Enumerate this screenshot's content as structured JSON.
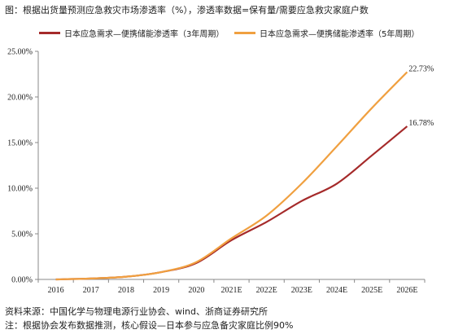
{
  "title": "图：根据出货量预测应急救灾市场渗透率（%），渗透率数据=保有量/需要应急救灾家庭户数",
  "source": "资料来源：中国化学与物理电源行业协会、wind、浙商证券研究所",
  "note": "注：根据协会发布数据推测，核心假设—日本参与应急备灾家庭比例90%",
  "chart_data": {
    "type": "line",
    "x": [
      "2016",
      "2017",
      "2018",
      "2019",
      "2020",
      "2021E",
      "2022E",
      "2023E",
      "2024E",
      "2025E",
      "2026E"
    ],
    "yticks": [
      "0.00%",
      "5.00%",
      "10.00%",
      "15.00%",
      "20.00%",
      "25.00%"
    ],
    "ylim": [
      0,
      25
    ],
    "series": [
      {
        "name": "日本应急需求—便携储能渗透率（3年周期）",
        "color": "#a52a2a",
        "values": [
          0.0,
          0.1,
          0.3,
          0.8,
          1.8,
          4.3,
          6.3,
          8.6,
          10.5,
          13.6,
          16.78
        ],
        "end_label": "16.78%"
      },
      {
        "name": "日本应急需求—便携储能渗透率（5年周期）",
        "color": "#f0a040",
        "values": [
          0.0,
          0.1,
          0.3,
          0.8,
          1.9,
          4.5,
          7.0,
          10.5,
          14.6,
          18.8,
          22.73
        ],
        "end_label": "22.73%"
      }
    ],
    "grid": false,
    "legend": "top"
  }
}
